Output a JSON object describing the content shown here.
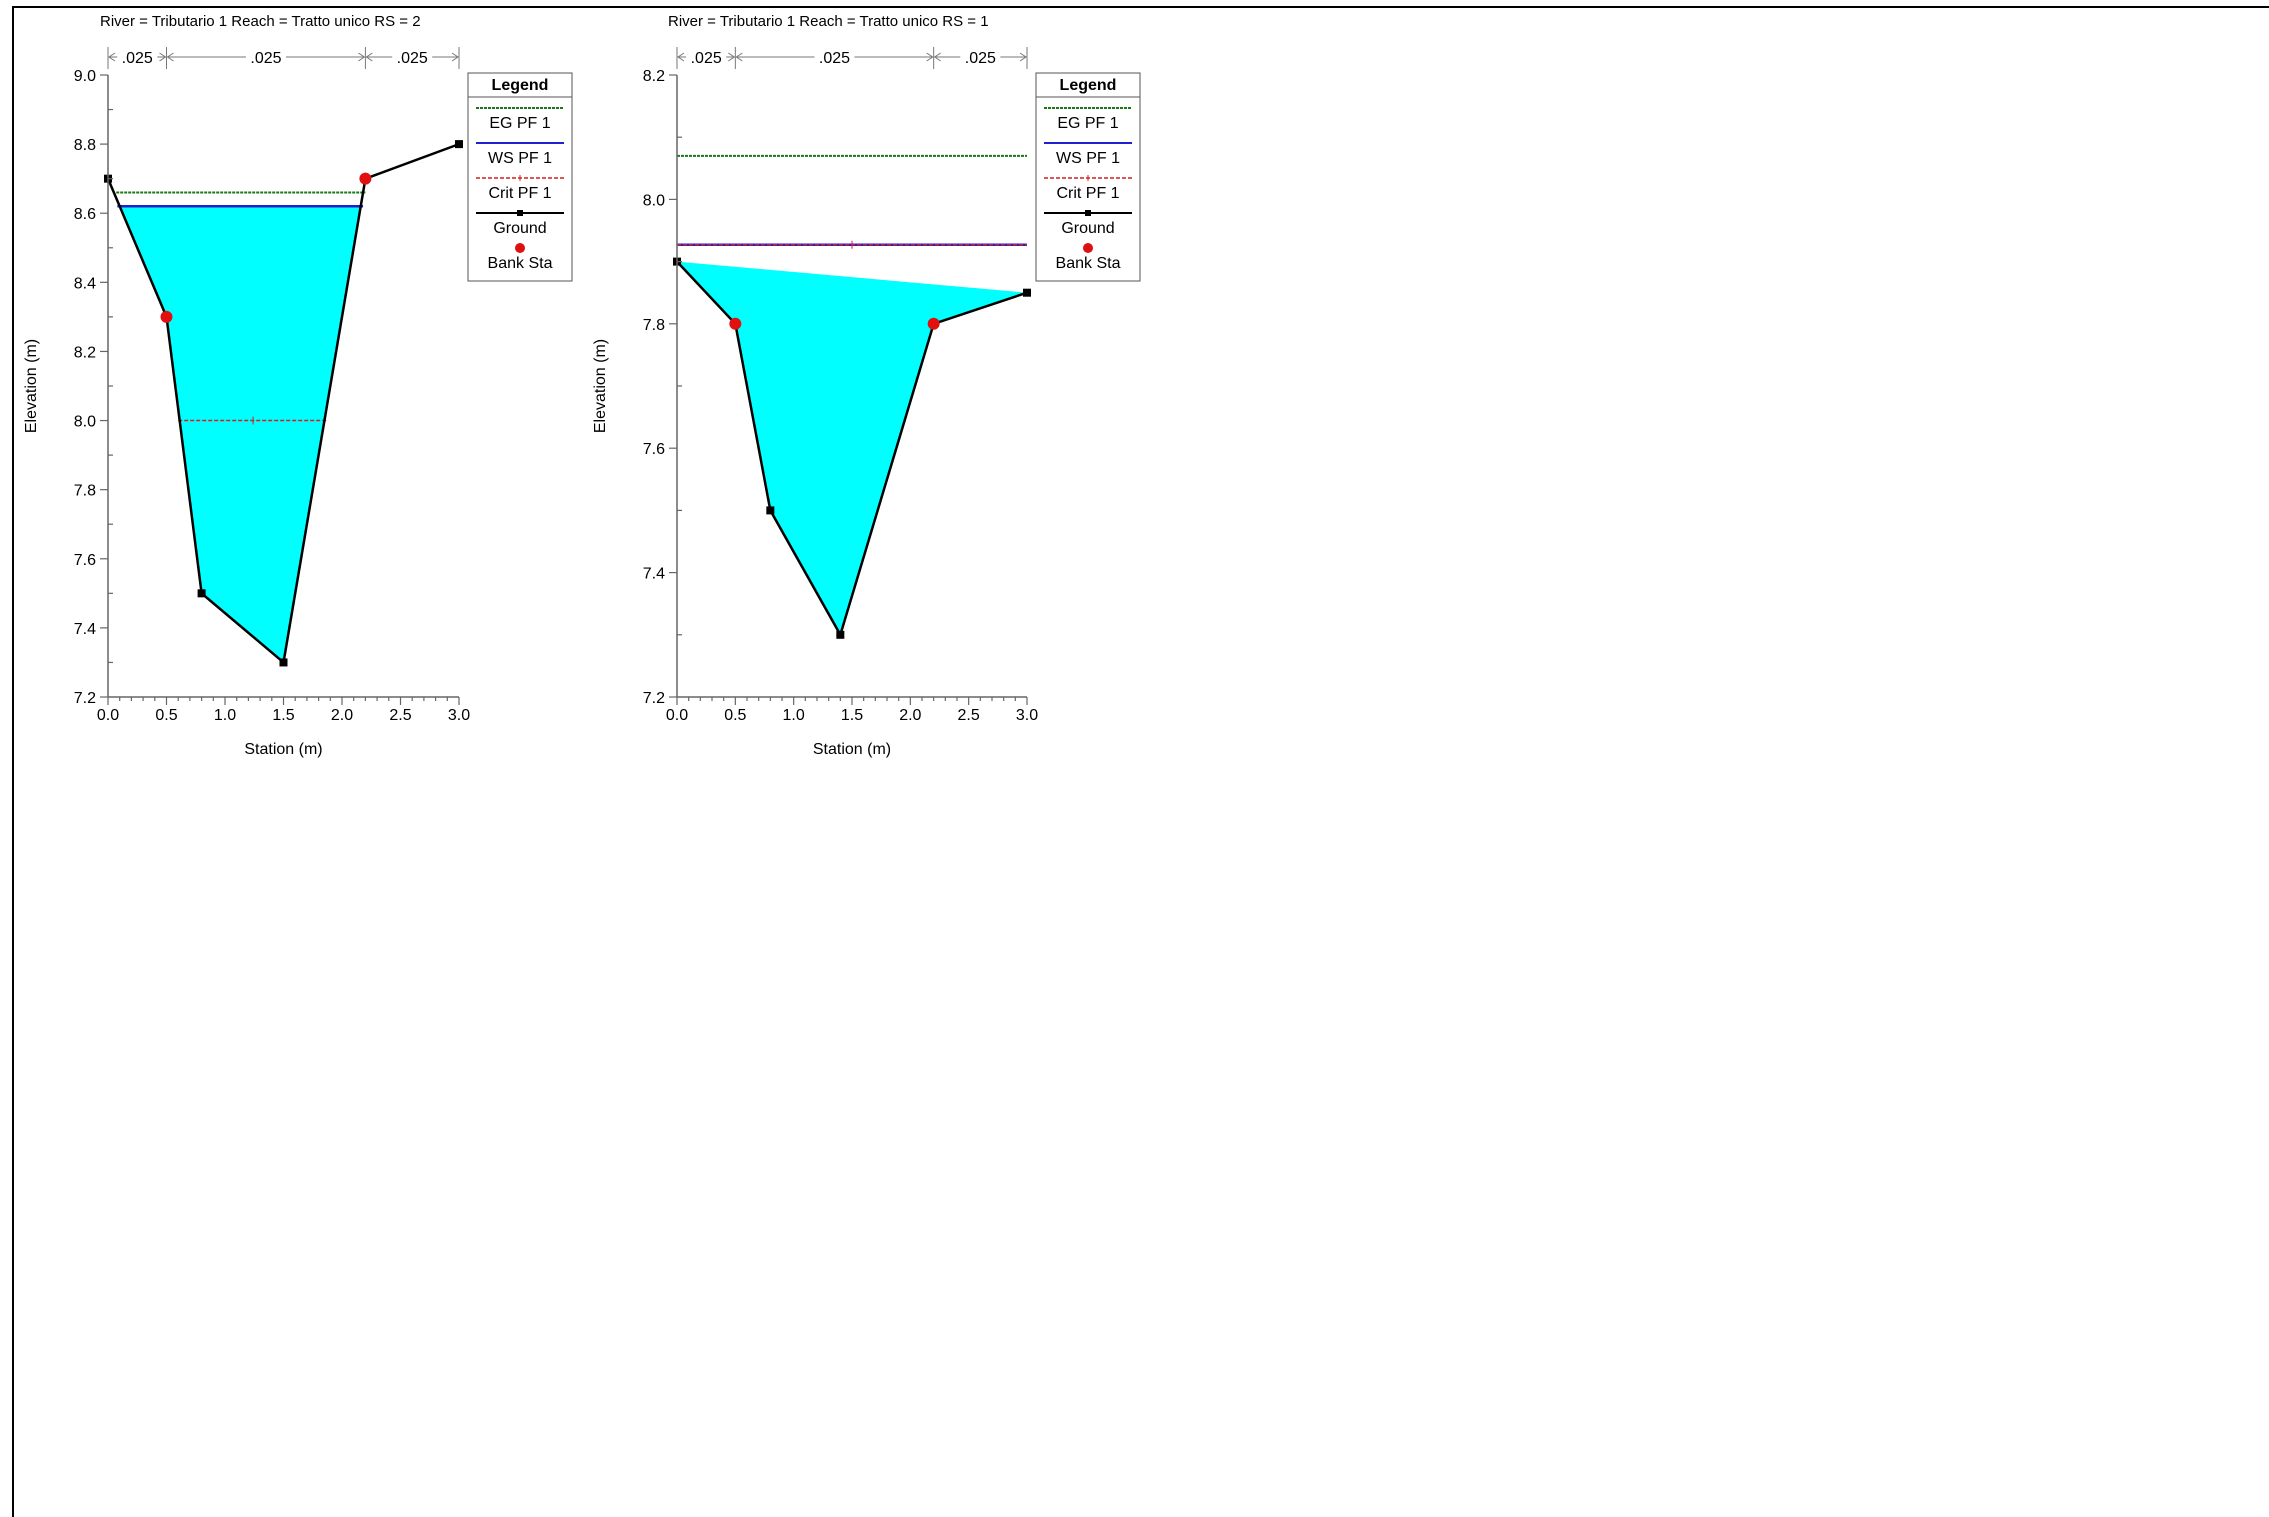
{
  "chart_data": [
    {
      "type": "line",
      "title": "River = Tributario 1   Reach = Tratto unico      RS = 2",
      "xlabel": "Station (m)",
      "ylabel": "Elevation (m)",
      "xlim": [
        0,
        3.0
      ],
      "ylim": [
        7.2,
        9.0
      ],
      "xticks": [
        "0.0",
        "0.5",
        "1.0",
        "1.5",
        "2.0",
        "2.5",
        "3.0"
      ],
      "yticks": [
        "9.0",
        "8.8",
        "8.6",
        "8.4",
        "8.2",
        "8.0",
        "7.8",
        "7.6",
        "7.4",
        "7.2"
      ],
      "mannings_n": [
        {
          "label": ".025",
          "from": 0.0,
          "to": 0.5
        },
        {
          "label": ".025",
          "from": 0.5,
          "to": 2.2
        },
        {
          "label": ".025",
          "from": 2.2,
          "to": 3.0
        }
      ],
      "ground": {
        "x": [
          0.0,
          0.5,
          0.8,
          1.5,
          2.2,
          3.0
        ],
        "y": [
          8.7,
          8.3,
          7.5,
          7.3,
          8.7,
          8.8
        ]
      },
      "bank_stations": {
        "x": [
          0.5,
          2.2
        ],
        "y": [
          8.3,
          8.7
        ]
      },
      "eg": {
        "y": 8.66,
        "x_from": 0.07,
        "x_to": 2.2
      },
      "ws": {
        "y": 8.62,
        "x_from": 0.08,
        "x_to": 2.18
      },
      "crit": {
        "y": 8.0,
        "x_from": 0.6,
        "x_to": 1.88
      },
      "legend_title": "Legend",
      "legend": [
        "EG PF 1",
        "WS PF 1",
        "Crit PF 1",
        "Ground",
        "Bank Sta"
      ],
      "legend_position": "top-right",
      "colors": {
        "eg": "#1a7a1a",
        "ws": "#2020d0",
        "crit": "#d02020",
        "ground": "#000000",
        "bank": "#e01010",
        "water": "#00ffff"
      }
    },
    {
      "type": "line",
      "title": "River = Tributario 1   Reach = Tratto unico      RS = 1",
      "xlabel": "Station (m)",
      "ylabel": "Elevation (m)",
      "xlim": [
        0,
        3.0
      ],
      "ylim": [
        7.2,
        8.2
      ],
      "xticks": [
        "0.0",
        "0.5",
        "1.0",
        "1.5",
        "2.0",
        "2.5",
        "3.0"
      ],
      "yticks": [
        "8.2",
        "8.0",
        "7.8",
        "7.6",
        "7.4",
        "7.2"
      ],
      "mannings_n": [
        {
          "label": ".025",
          "from": 0.0,
          "to": 0.5
        },
        {
          "label": ".025",
          "from": 0.5,
          "to": 2.2
        },
        {
          "label": ".025",
          "from": 2.2,
          "to": 3.0
        }
      ],
      "ground": {
        "x": [
          0.0,
          0.5,
          0.8,
          1.4,
          2.2,
          3.0
        ],
        "y": [
          7.9,
          7.8,
          7.5,
          7.3,
          7.8,
          7.85
        ]
      },
      "bank_stations": {
        "x": [
          0.5,
          2.2
        ],
        "y": [
          7.8,
          7.8
        ]
      },
      "eg": {
        "y": 8.07,
        "x_from": 0.0,
        "x_to": 3.0
      },
      "ws": {
        "y": 7.927,
        "x_from": 0.0,
        "x_to": 3.0
      },
      "crit": {
        "y": 7.927,
        "x_from": 0.0,
        "x_to": 3.0
      },
      "legend_title": "Legend",
      "legend": [
        "EG PF 1",
        "WS PF 1",
        "Crit PF 1",
        "Ground",
        "Bank Sta"
      ],
      "legend_position": "top-right",
      "colors": {
        "eg": "#1a7a1a",
        "ws": "#2020d0",
        "crit": "#d02020",
        "ground": "#000000",
        "bank": "#e01010",
        "water": "#00ffff"
      }
    }
  ]
}
